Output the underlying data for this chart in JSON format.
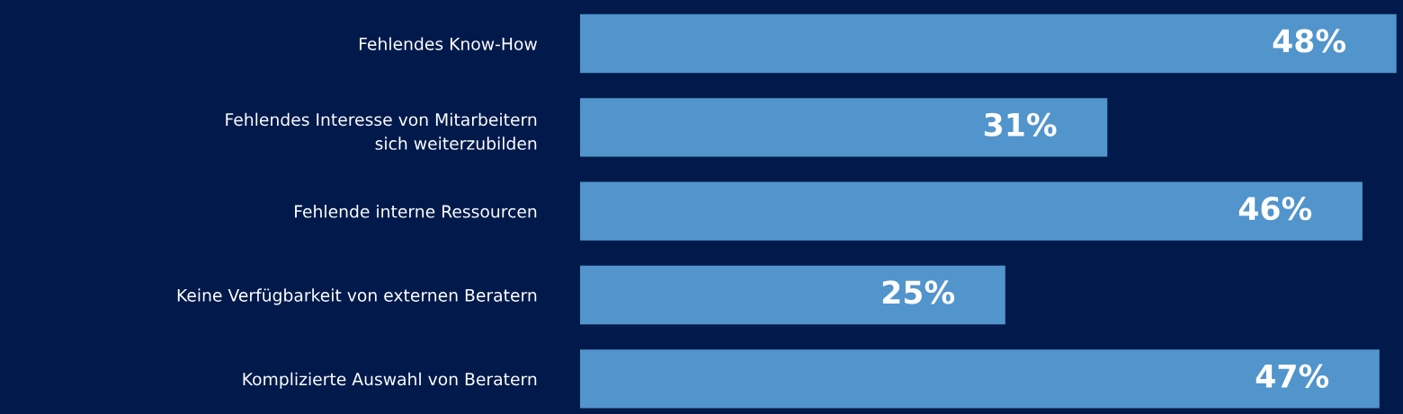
{
  "chart_data": {
    "type": "bar",
    "orientation": "horizontal",
    "categories": [
      "Fehlendes Know-How",
      "Fehlendes Interesse von Mitarbeitern\nsich weiterzubilden",
      "Fehlende interne Ressourcen",
      "Keine Verfügbarkeit von externen Beratern",
      "Komplizierte Auswahl von Beratern"
    ],
    "values": [
      48,
      31,
      46,
      25,
      47
    ],
    "value_labels": [
      "48%",
      "31%",
      "46%",
      "25%",
      "47%"
    ],
    "color": "#5294cc"
  }
}
